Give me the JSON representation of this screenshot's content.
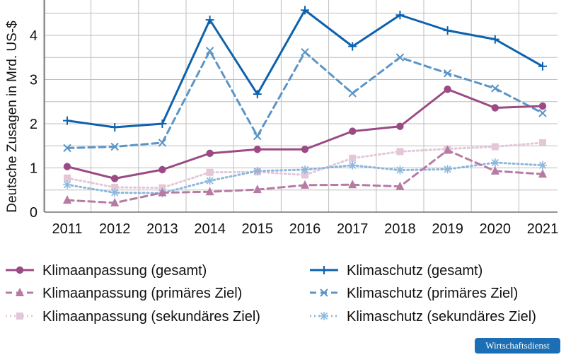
{
  "chart_data": {
    "type": "line",
    "title": "",
    "xlabel": "",
    "ylabel": "Deutsche Zusagen in Mrd. US-$",
    "ylim": [
      0,
      4.8
    ],
    "yticks": [
      0,
      1,
      2,
      3,
      4
    ],
    "categories": [
      "2011",
      "2012",
      "2013",
      "2014",
      "2015",
      "2016",
      "2017",
      "2018",
      "2019",
      "2020",
      "2021"
    ],
    "grid": true,
    "legend_position": "bottom",
    "series": [
      {
        "name": "Klimaanpassung (gesamt)",
        "color": "#9b4a84",
        "style": "solid",
        "marker": "circle",
        "values": [
          1.03,
          0.76,
          0.96,
          1.33,
          1.42,
          1.42,
          1.83,
          1.94,
          2.78,
          2.36,
          2.4
        ]
      },
      {
        "name": "Klimaanpassung (primäres Ziel)",
        "color": "#b77aa3",
        "style": "dashed",
        "marker": "triangle",
        "values": [
          0.27,
          0.21,
          0.44,
          0.46,
          0.51,
          0.61,
          0.62,
          0.58,
          1.4,
          0.93,
          0.86
        ]
      },
      {
        "name": "Klimaanpassung (sekundäres Ziel)",
        "color": "#e3c7d8",
        "style": "dotted",
        "marker": "square",
        "values": [
          0.77,
          0.56,
          0.55,
          0.9,
          0.91,
          0.84,
          1.22,
          1.37,
          1.43,
          1.48,
          1.57
        ]
      },
      {
        "name": "Klimaschutz (gesamt)",
        "color": "#0d62ad",
        "style": "solid",
        "marker": "plus",
        "values": [
          2.07,
          1.92,
          2.0,
          4.35,
          2.67,
          4.57,
          3.75,
          4.46,
          4.11,
          3.91,
          3.3
        ]
      },
      {
        "name": "Klimaschutz (primäres Ziel)",
        "color": "#5b95c8",
        "style": "dashed",
        "marker": "x",
        "values": [
          1.45,
          1.48,
          1.57,
          3.65,
          1.72,
          3.62,
          2.69,
          3.5,
          3.14,
          2.8,
          2.24
        ]
      },
      {
        "name": "Klimaschutz (sekundäres Ziel)",
        "color": "#8db7dd",
        "style": "dotted",
        "marker": "asterisk",
        "values": [
          0.62,
          0.44,
          0.43,
          0.71,
          0.93,
          0.96,
          1.06,
          0.95,
          0.97,
          1.12,
          1.06
        ]
      }
    ]
  },
  "badge": {
    "label": "Wirtschaftsdienst"
  }
}
